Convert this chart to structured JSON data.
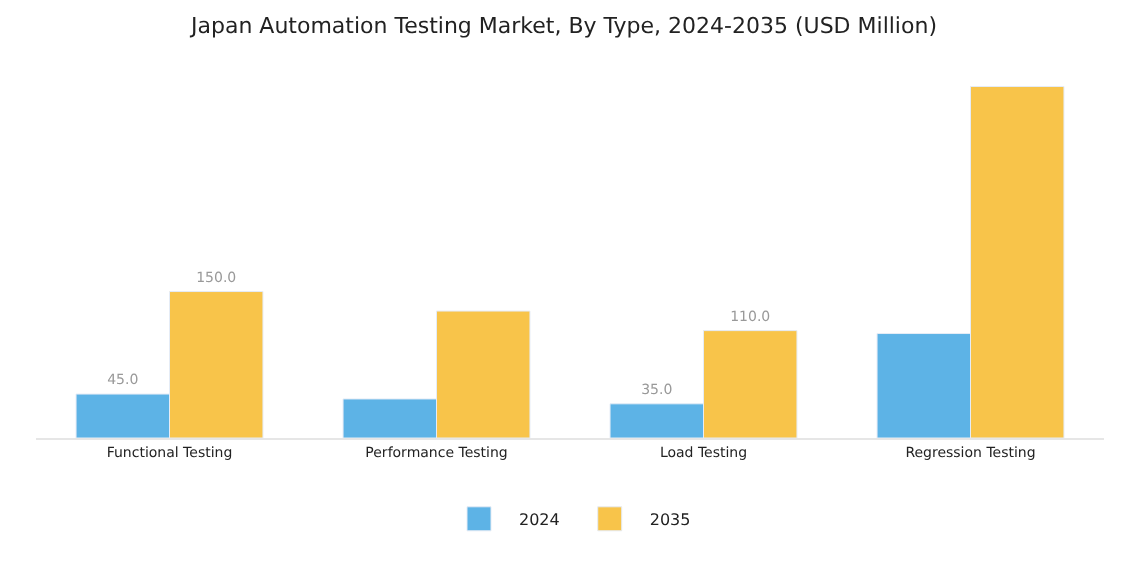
{
  "chart_data": {
    "type": "bar",
    "title": "Japan Automation Testing Market, By Type, 2024-2035 (USD Million)",
    "categories": [
      "Functional Testing",
      "Performance Testing",
      "Load Testing",
      "Regression Testing"
    ],
    "series": [
      {
        "name": "2024",
        "color": "#5db3e6",
        "values": [
          45,
          40,
          35,
          107
        ],
        "value_labels": [
          "45.0",
          null,
          "35.0",
          null
        ]
      },
      {
        "name": "2035",
        "color": "#f8c44a",
        "values": [
          150,
          130,
          110,
          360
        ],
        "value_labels": [
          "150.0",
          null,
          "110.0",
          null
        ]
      }
    ],
    "legend": "bottom",
    "tick_labels": "x"
  }
}
